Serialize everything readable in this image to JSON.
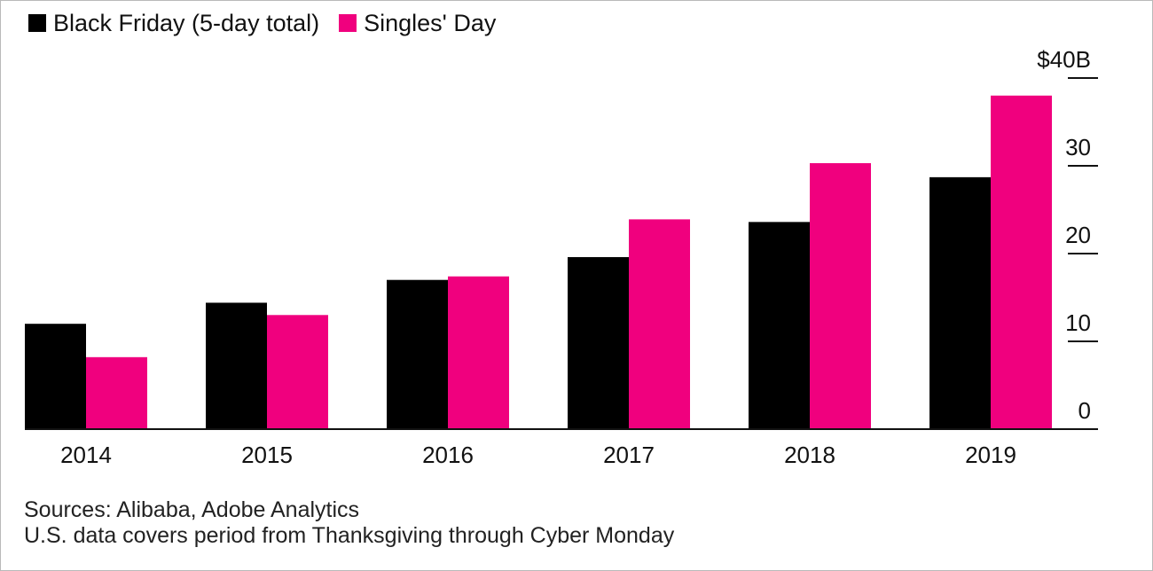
{
  "chart_data": {
    "type": "bar",
    "categories": [
      "2014",
      "2015",
      "2016",
      "2017",
      "2018",
      "2019"
    ],
    "series": [
      {
        "name": "Black Friday (5-day total)",
        "color": "#000000",
        "values": [
          12.0,
          14.4,
          17.0,
          19.6,
          23.6,
          28.7
        ]
      },
      {
        "name": "Singles' Day",
        "color": "#f0007e",
        "values": [
          8.2,
          13.0,
          17.4,
          23.9,
          30.3,
          38.0
        ]
      }
    ],
    "ylim": [
      0,
      40
    ],
    "yticks": [
      0,
      10,
      20,
      30,
      40
    ],
    "ytick_labels": [
      "0",
      "10",
      "20",
      "30",
      "$40B"
    ],
    "ylabel_side": "right",
    "title": "",
    "xlabel": "",
    "ylabel": ""
  },
  "sources": "Sources: Alibaba, Adobe Analytics",
  "note": "U.S. data covers period from Thanksgiving through Cyber Monday"
}
